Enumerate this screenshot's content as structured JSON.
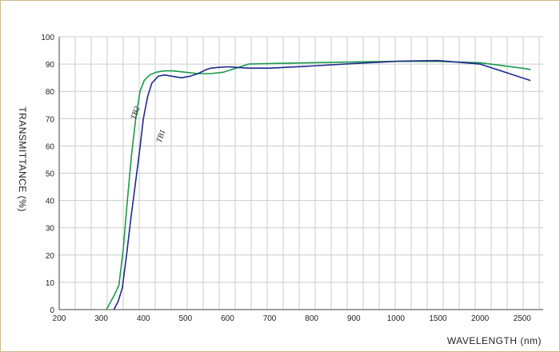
{
  "chart_data": {
    "type": "line",
    "xlabel": "WAVELENGTH (nm)",
    "ylabel": "TRANSMITTANCE  (%)",
    "x_tick_labels": [
      "200",
      "300",
      "400",
      "500",
      "600",
      "700",
      "800",
      "900",
      "1000",
      "1500",
      "2000",
      "2500"
    ],
    "y_tick_labels": [
      "0",
      "10",
      "20",
      "30",
      "40",
      "50",
      "60",
      "70",
      "80",
      "90",
      "100"
    ],
    "xlim": [
      200,
      2600
    ],
    "ylim": [
      0,
      100
    ],
    "grid": true,
    "x_scale": "nonlinear: 200-1000 nm at 100 nm per division, 1000-2500 nm at 500 nm per division",
    "series": [
      {
        "name": "TB2",
        "color": "#1a9a4a",
        "x": [
          312,
          330,
          342,
          352,
          362,
          372,
          382,
          392,
          402,
          415,
          430,
          450,
          470,
          500,
          530,
          560,
          590,
          620,
          650,
          700,
          800,
          900,
          1000,
          1250,
          1500,
          2000,
          2500,
          2600
        ],
        "y": [
          0,
          5,
          9,
          22,
          40,
          57,
          70,
          80,
          84,
          86,
          87,
          87.5,
          87.5,
          87,
          86.5,
          86.5,
          87,
          88.5,
          90,
          90.2,
          90.5,
          90.8,
          91,
          91,
          91,
          90.5,
          88.5,
          88
        ]
      },
      {
        "name": "TB1",
        "color": "#1f2a8c",
        "x": [
          330,
          340,
          350,
          360,
          370,
          380,
          390,
          400,
          410,
          420,
          435,
          450,
          470,
          490,
          510,
          530,
          550,
          560,
          580,
          600,
          620,
          650,
          700,
          800,
          900,
          1000,
          1250,
          1500,
          2000,
          2500,
          2600
        ],
        "y": [
          0,
          3,
          8,
          20,
          33,
          45,
          57,
          70,
          78,
          83,
          85.5,
          86,
          85.5,
          85,
          85.5,
          86.5,
          88,
          88.5,
          88.8,
          89,
          88.8,
          88.5,
          88.5,
          89.3,
          90.2,
          91,
          91.2,
          91.3,
          90,
          85,
          84
        ]
      }
    ]
  },
  "colors": {
    "grid": "#cccccc",
    "axis": "#444444",
    "frame": "#c9b98a"
  }
}
